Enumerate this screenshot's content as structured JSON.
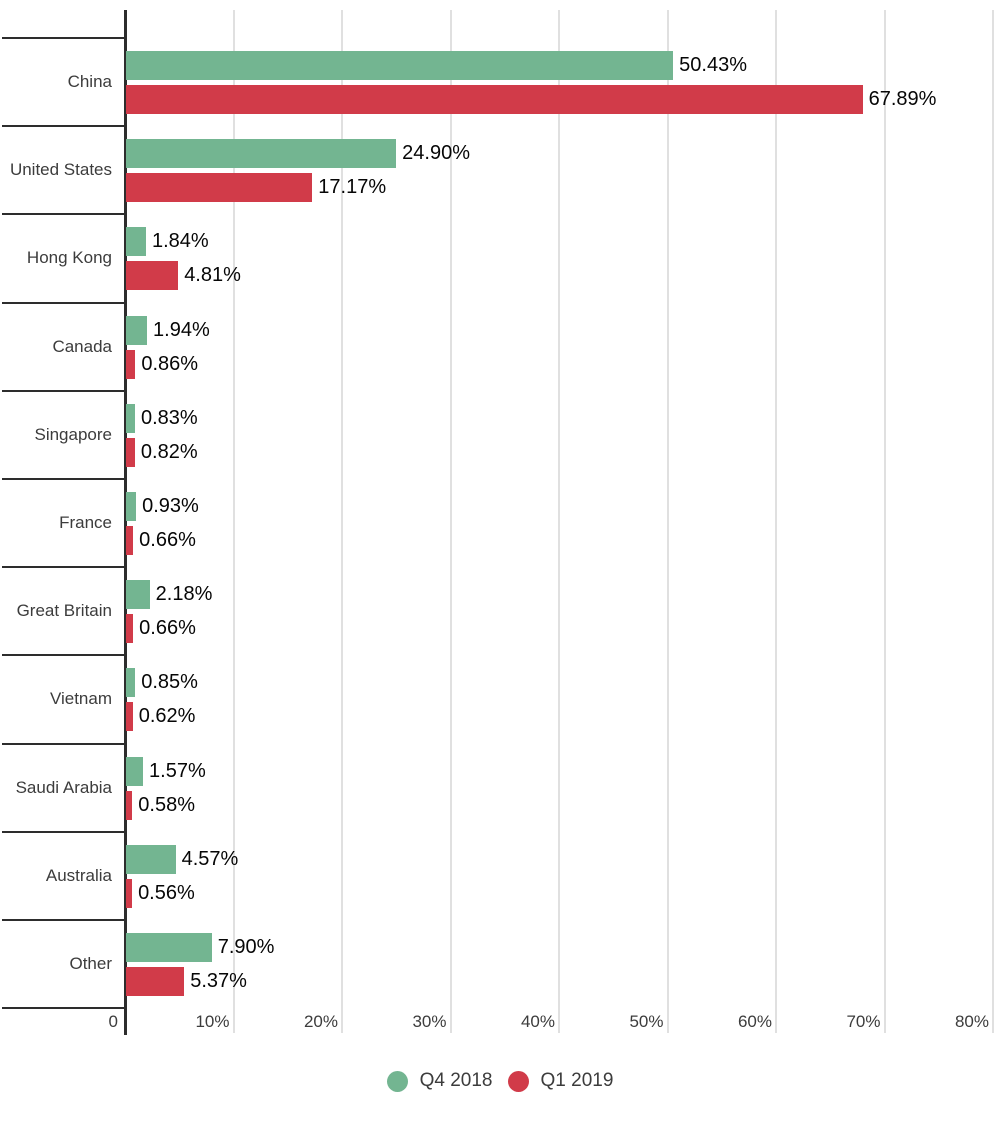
{
  "chart_data": {
    "type": "bar",
    "orientation": "horizontal",
    "title": "",
    "xlabel": "",
    "ylabel": "",
    "xlim": [
      0,
      80
    ],
    "grid": true,
    "legend_position": "bottom-center",
    "categories": [
      "China",
      "United States",
      "Hong Kong",
      "Canada",
      "Singapore",
      "France",
      "Great Britain",
      "Vietnam",
      "Saudi Arabia",
      "Australia",
      "Other"
    ],
    "series": [
      {
        "name": "Q4 2018",
        "color": "#73b591",
        "values": [
          50.43,
          24.9,
          1.84,
          1.94,
          0.83,
          0.93,
          2.18,
          0.85,
          1.57,
          4.57,
          7.9
        ],
        "labels": [
          "50.43%",
          "24.90%",
          "1.84%",
          "1.94%",
          "0.83%",
          "0.93%",
          "2.18%",
          "0.85%",
          "1.57%",
          "4.57%",
          "7.90%"
        ]
      },
      {
        "name": "Q1 2019",
        "color": "#d13b49",
        "values": [
          67.89,
          17.17,
          4.81,
          0.86,
          0.82,
          0.66,
          0.66,
          0.62,
          0.58,
          0.56,
          5.37
        ],
        "labels": [
          "67.89%",
          "17.17%",
          "4.81%",
          "0.86%",
          "0.82%",
          "0.66%",
          "0.66%",
          "0.62%",
          "0.58%",
          "0.56%",
          "5.37%"
        ]
      }
    ],
    "x_ticks": [
      "0",
      "10%",
      "20%",
      "30%",
      "40%",
      "50%",
      "60%",
      "70%",
      "80%"
    ],
    "legend": [
      "Q4 2018",
      "Q1 2019"
    ]
  },
  "colors": {
    "series_green": "#73b591",
    "series_red": "#d13b49",
    "axis": "#2d2d2d",
    "grid": "#e0e0e0",
    "text": "#3c3c3c",
    "value_text": "#060606",
    "background": "#ffffff"
  }
}
